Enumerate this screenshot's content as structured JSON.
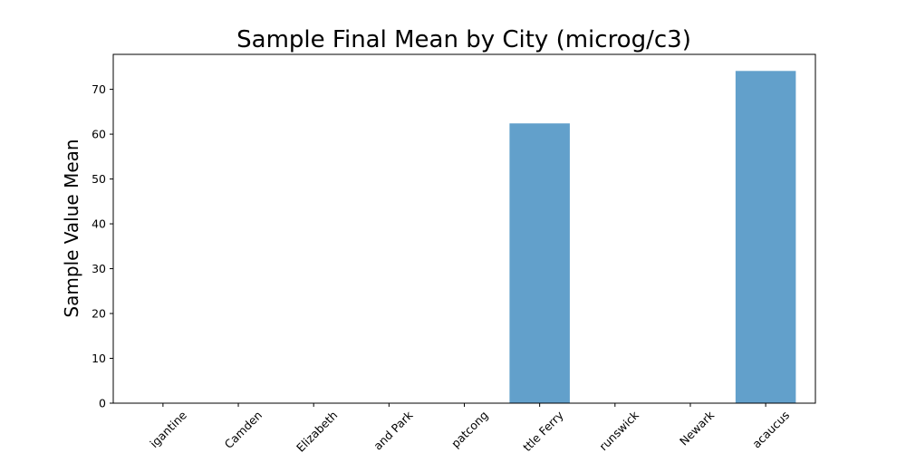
{
  "chart_data": {
    "type": "bar",
    "title": "Sample Final Mean by City (microg/c3)",
    "xlabel": "",
    "ylabel": "Sample Value Mean",
    "categories": [
      "Brigantine",
      "Camden",
      "Elizabeth",
      "Highland Park",
      "Hopatcong",
      "Little Ferry",
      "New Brunswick",
      "Newark",
      "Secaucus"
    ],
    "category_labels_visible": [
      "igantine",
      "Camden",
      "Elizabeth",
      "and Park",
      "patcong",
      "ttle Ferry",
      "runswick",
      "Newark",
      "acaucus"
    ],
    "values": [
      0,
      0,
      0,
      0,
      0,
      62.4,
      0,
      0,
      74.1
    ],
    "ylim": [
      0,
      77.8
    ],
    "yticks": [
      0,
      10,
      20,
      30,
      40,
      50,
      60,
      70
    ],
    "bar_color": "#62a0cb",
    "grid": false,
    "legend": false
  }
}
